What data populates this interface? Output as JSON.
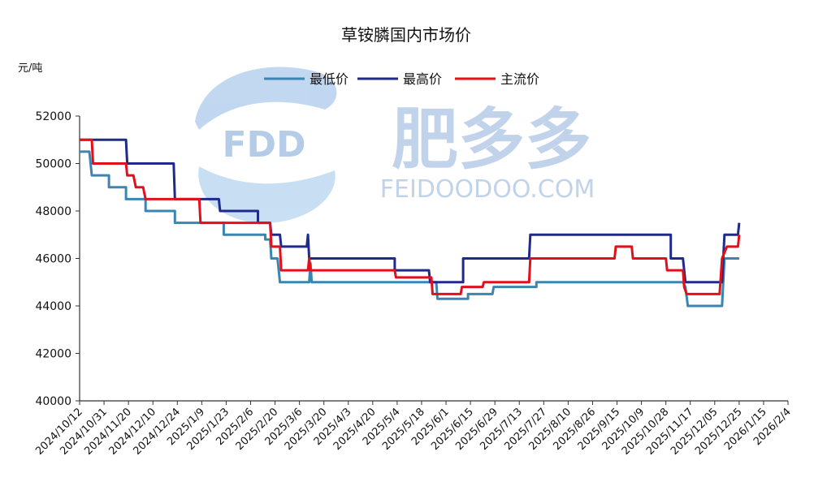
{
  "chart_data": {
    "type": "line",
    "title": "草铵膦国内市场价",
    "ylabel": "元/吨",
    "xlabel": "",
    "ylim": [
      40000,
      52000
    ],
    "yticks": [
      40000,
      42000,
      44000,
      46000,
      48000,
      50000,
      52000
    ],
    "grid": false,
    "legend_position": "top-center",
    "x_tick_labels": [
      "2024/10/12",
      "2024/10/31",
      "2024/11/20",
      "2024/12/10",
      "2024/12/24",
      "2025/1/9",
      "2025/1/23",
      "2025/2/6",
      "2025/2/20",
      "2025/3/6",
      "2025/3/20",
      "2025/4/3",
      "2025/4/20",
      "2025/5/4",
      "2025/5/18",
      "2025/6/1",
      "2025/6/15",
      "2025/6/29",
      "2025/7/13",
      "2025/7/27",
      "2025/8/10",
      "2025/8/26",
      "2025/9/15",
      "2025/10/9",
      "2025/10/28",
      "2025/11/17",
      "2025/12/05",
      "2025/12/25",
      "2026/1/15",
      "2026/2/4"
    ],
    "series": [
      {
        "name": "最低价",
        "color": "#3a86b0",
        "points": [
          [
            0,
            50500
          ],
          [
            0.4,
            50500
          ],
          [
            0.5,
            49500
          ],
          [
            1.2,
            49500
          ],
          [
            1.2,
            49000
          ],
          [
            1.9,
            49000
          ],
          [
            1.9,
            48500
          ],
          [
            2.7,
            48500
          ],
          [
            2.7,
            48000
          ],
          [
            3.9,
            48000
          ],
          [
            3.9,
            47500
          ],
          [
            5.9,
            47500
          ],
          [
            5.9,
            47000
          ],
          [
            7.6,
            47000
          ],
          [
            7.6,
            46800
          ],
          [
            7.8,
            46800
          ],
          [
            7.85,
            46000
          ],
          [
            8.1,
            46000
          ],
          [
            8.2,
            45000
          ],
          [
            9.4,
            45000
          ],
          [
            9.45,
            45800
          ],
          [
            9.5,
            45000
          ],
          [
            14.6,
            45000
          ],
          [
            14.65,
            44300
          ],
          [
            15.9,
            44300
          ],
          [
            15.9,
            44500
          ],
          [
            16.9,
            44500
          ],
          [
            16.95,
            44800
          ],
          [
            18.7,
            44800
          ],
          [
            18.7,
            45000
          ],
          [
            24.7,
            45000
          ],
          [
            24.8,
            44800
          ],
          [
            24.9,
            44000
          ],
          [
            26.3,
            44000
          ],
          [
            26.4,
            46000
          ],
          [
            27.0,
            46000
          ]
        ]
      },
      {
        "name": "最高价",
        "color": "#1f2a8a",
        "points": [
          [
            0,
            51000
          ],
          [
            1.9,
            51000
          ],
          [
            1.95,
            50000
          ],
          [
            3.85,
            50000
          ],
          [
            3.9,
            48500
          ],
          [
            5.7,
            48500
          ],
          [
            5.75,
            48000
          ],
          [
            7.3,
            48000
          ],
          [
            7.3,
            47500
          ],
          [
            7.8,
            47500
          ],
          [
            7.85,
            47000
          ],
          [
            8.2,
            47000
          ],
          [
            8.25,
            46500
          ],
          [
            9.3,
            46500
          ],
          [
            9.35,
            47000
          ],
          [
            9.4,
            46000
          ],
          [
            12.9,
            46000
          ],
          [
            12.9,
            45500
          ],
          [
            14.3,
            45500
          ],
          [
            14.35,
            45000
          ],
          [
            15.7,
            45000
          ],
          [
            15.7,
            46000
          ],
          [
            18.4,
            46000
          ],
          [
            18.45,
            47000
          ],
          [
            24.2,
            47000
          ],
          [
            24.2,
            46000
          ],
          [
            24.7,
            46000
          ],
          [
            24.8,
            45000
          ],
          [
            26.3,
            45000
          ],
          [
            26.4,
            47000
          ],
          [
            26.95,
            47000
          ],
          [
            27.0,
            47500
          ]
        ]
      },
      {
        "name": "主流价",
        "color": "#e3101c",
        "points": [
          [
            0,
            51000
          ],
          [
            0.5,
            51000
          ],
          [
            0.55,
            50000
          ],
          [
            1.9,
            50000
          ],
          [
            1.95,
            49500
          ],
          [
            2.2,
            49500
          ],
          [
            2.3,
            49000
          ],
          [
            2.6,
            49000
          ],
          [
            2.7,
            48500
          ],
          [
            4.9,
            48500
          ],
          [
            4.95,
            47500
          ],
          [
            7.8,
            47500
          ],
          [
            7.85,
            46500
          ],
          [
            8.2,
            46500
          ],
          [
            8.25,
            45500
          ],
          [
            9.35,
            45500
          ],
          [
            9.4,
            46000
          ],
          [
            9.45,
            45500
          ],
          [
            12.9,
            45500
          ],
          [
            12.95,
            45200
          ],
          [
            14.4,
            45200
          ],
          [
            14.45,
            44500
          ],
          [
            15.6,
            44500
          ],
          [
            15.65,
            44800
          ],
          [
            16.5,
            44800
          ],
          [
            16.55,
            45000
          ],
          [
            18.4,
            45000
          ],
          [
            18.45,
            46000
          ],
          [
            21.9,
            46000
          ],
          [
            21.95,
            46500
          ],
          [
            22.6,
            46500
          ],
          [
            22.65,
            46000
          ],
          [
            24.0,
            46000
          ],
          [
            24.05,
            45500
          ],
          [
            24.7,
            45500
          ],
          [
            24.75,
            44800
          ],
          [
            24.85,
            44500
          ],
          [
            26.2,
            44500
          ],
          [
            26.3,
            46000
          ],
          [
            26.5,
            46500
          ],
          [
            26.95,
            46500
          ],
          [
            27.0,
            47000
          ]
        ]
      }
    ]
  },
  "watermark": {
    "logo_text": "FDD",
    "brand_cn": "肥多多",
    "brand_en": "FEIDOODOO.COM"
  }
}
